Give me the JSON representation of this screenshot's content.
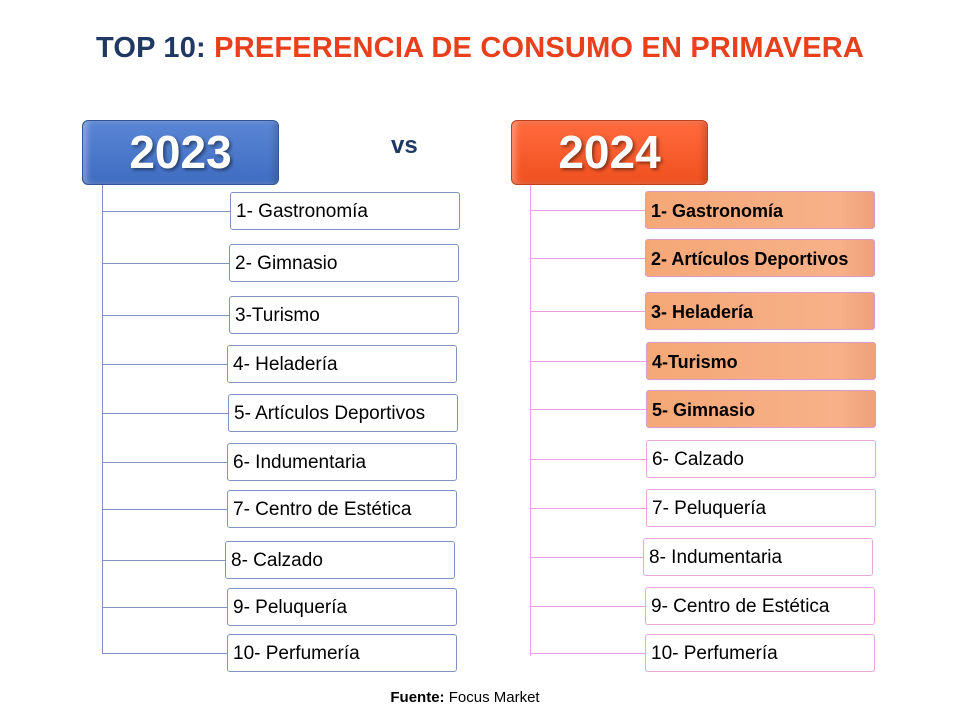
{
  "title": {
    "prefix": "TOP 10:",
    "main": "PREFERENCIA DE CONSUMO EN PRIMAVERA"
  },
  "vs_label": "vs",
  "left": {
    "year": "2023",
    "items": [
      "1- Gastronomía",
      "2- Gimnasio",
      "3-Turismo",
      "4- Heladería",
      "5- Artículos Deportivos",
      "6- Indumentaria",
      "7- Centro de Estética",
      "8- Calzado",
      "9- Peluquería",
      "10- Perfumería"
    ]
  },
  "right": {
    "year": "2024",
    "items": [
      "1- Gastronomía",
      "2- Artículos Deportivos",
      "3- Heladería",
      "4-Turismo",
      "5- Gimnasio",
      "6- Calzado",
      "7- Peluquería",
      "8- Indumentaria",
      "9- Centro de Estética",
      "10- Perfumería"
    ],
    "highlighted_count": 5
  },
  "source": {
    "label": "Fuente:",
    "value": "Focus Market"
  },
  "colors": {
    "navy": "#1f3864",
    "orange": "#e8401c",
    "blue_header": "#4472c4",
    "orange_header": "#f4572c",
    "highlight": "#f6ad7e",
    "pink_line": "#e9a0e0"
  }
}
